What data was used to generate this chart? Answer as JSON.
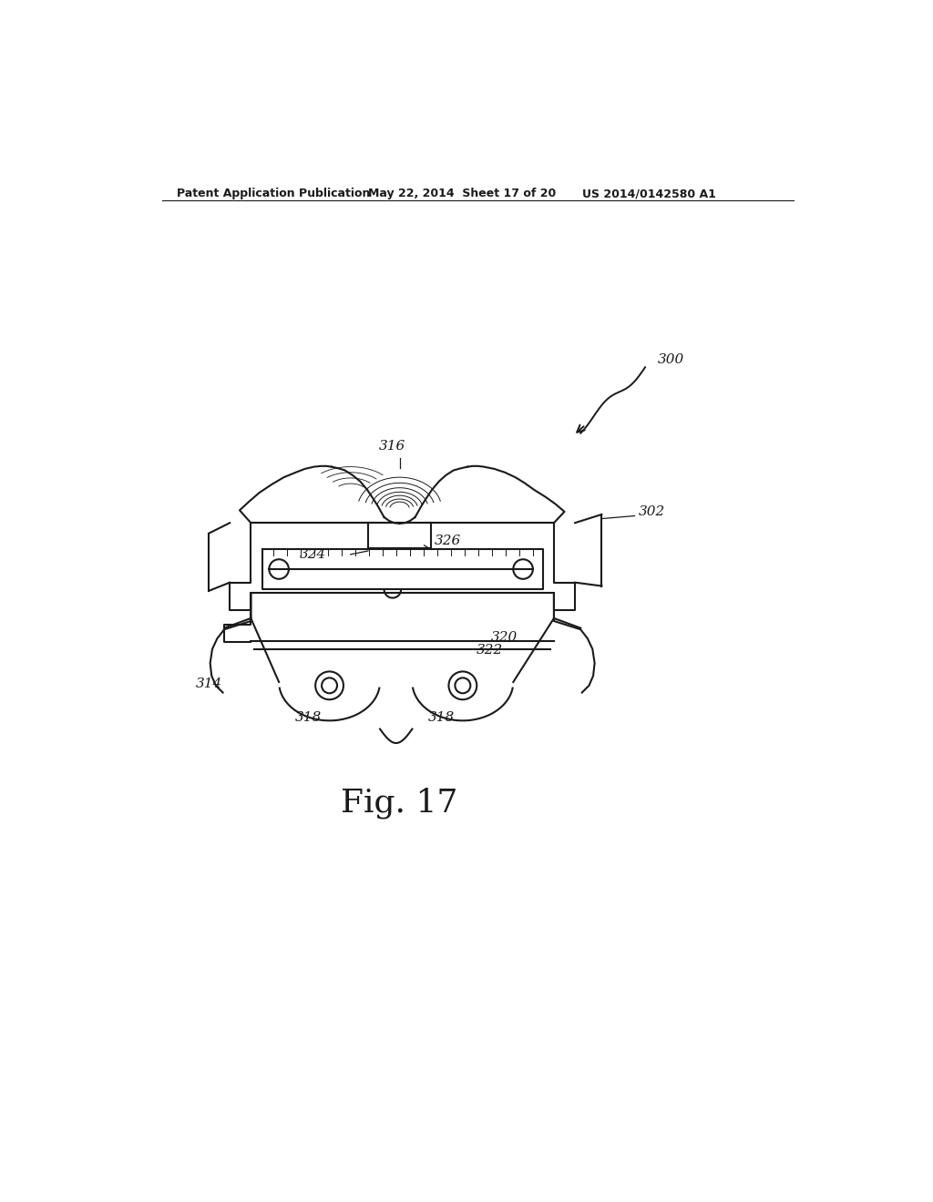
{
  "bg_color": "#ffffff",
  "line_color": "#1a1a1a",
  "header_left": "Patent Application Publication",
  "header_mid": "May 22, 2014  Sheet 17 of 20",
  "header_right": "US 2014/0142580 A1",
  "fig_label": "Fig. 17",
  "ref_300": "300",
  "ref_302": "302",
  "ref_314": "314",
  "ref_316": "316",
  "ref_318a": "318",
  "ref_318b": "318",
  "ref_320": "320",
  "ref_322": "322",
  "ref_324": "324",
  "ref_326": "326",
  "lw": 1.5,
  "lw_thin": 0.7,
  "fs_header": 9,
  "fs_ref": 11,
  "fs_fig": 26
}
